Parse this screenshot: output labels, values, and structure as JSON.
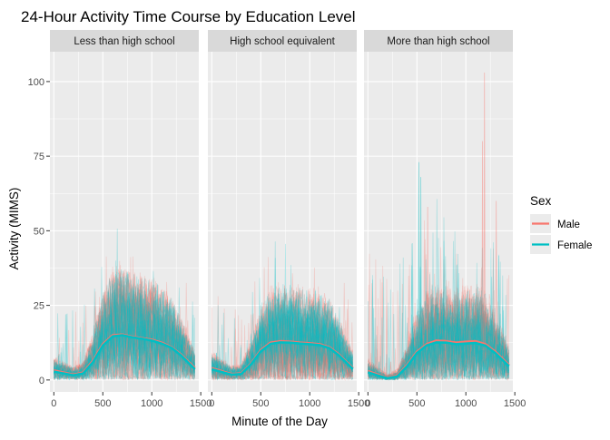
{
  "chart_data": {
    "type": "line",
    "title": "24-Hour Activity Time Course by Education Level",
    "xlabel": "Minute of the Day",
    "ylabel": "Activity (MIMS)",
    "xlim": [
      -40,
      1480
    ],
    "ylim": [
      -4,
      110
    ],
    "xticks": [
      0,
      500,
      1000,
      1500
    ],
    "yticks": [
      0,
      25,
      50,
      75,
      100
    ],
    "grid": true,
    "legend": {
      "title": "Sex",
      "position": "right",
      "entries": [
        {
          "label": "Male",
          "color": "#F8766D"
        },
        {
          "label": "Female",
          "color": "#00BFC4"
        }
      ]
    },
    "colors": {
      "male": "#F8766D",
      "female": "#00BFC4",
      "panel_bg": "#EBEBEB",
      "strip_bg": "#D9D9D9"
    },
    "panels": [
      {
        "label": "Less than high school",
        "smooth": [
          {
            "series": "Male",
            "x": [
              0,
              100,
              200,
              300,
              400,
              500,
              600,
              700,
              800,
              900,
              1000,
              1100,
              1200,
              1300,
              1440
            ],
            "y": [
              3.2,
              2.5,
              1.8,
              2.5,
              6.5,
              12.0,
              15.0,
              15.2,
              14.5,
              14.0,
              13.5,
              12.5,
              11.0,
              8.5,
              4.0
            ]
          },
          {
            "series": "Female",
            "x": [
              0,
              100,
              200,
              300,
              400,
              500,
              600,
              700,
              800,
              900,
              1000,
              1100,
              1200,
              1300,
              1440
            ],
            "y": [
              2.8,
              2.2,
              1.6,
              2.2,
              6.0,
              11.5,
              14.6,
              15.0,
              14.3,
              13.8,
              13.2,
              12.2,
              10.8,
              8.2,
              3.6
            ]
          }
        ]
      },
      {
        "label": "High school equivalent",
        "smooth": [
          {
            "series": "Male",
            "x": [
              0,
              100,
              200,
              300,
              400,
              500,
              600,
              700,
              800,
              900,
              1000,
              1100,
              1200,
              1300,
              1440
            ],
            "y": [
              4.0,
              3.0,
              2.0,
              2.2,
              5.5,
              10.0,
              12.5,
              13.0,
              12.8,
              12.5,
              12.3,
              12.0,
              11.0,
              8.5,
              4.0
            ]
          },
          {
            "series": "Female",
            "x": [
              0,
              100,
              200,
              300,
              400,
              500,
              600,
              700,
              800,
              900,
              1000,
              1100,
              1200,
              1300,
              1440
            ],
            "y": [
              3.6,
              2.7,
              1.8,
              2.0,
              5.2,
              9.6,
              12.1,
              12.6,
              12.5,
              12.2,
              12.0,
              11.7,
              10.7,
              8.2,
              3.7
            ]
          }
        ]
      },
      {
        "label": "More than high school",
        "smooth": [
          {
            "series": "Male",
            "x": [
              0,
              100,
              200,
              300,
              400,
              500,
              600,
              700,
              800,
              900,
              1000,
              1100,
              1200,
              1300,
              1440
            ],
            "y": [
              3.0,
              1.8,
              0.8,
              1.5,
              5.0,
              9.5,
              12.0,
              13.2,
              13.0,
              12.5,
              12.8,
              13.0,
              12.0,
              9.5,
              5.0
            ]
          },
          {
            "series": "Female",
            "x": [
              0,
              100,
              200,
              300,
              400,
              500,
              600,
              700,
              800,
              900,
              1000,
              1100,
              1200,
              1300,
              1440
            ],
            "y": [
              2.6,
              1.5,
              0.6,
              1.2,
              4.6,
              9.0,
              11.6,
              12.6,
              12.5,
              12.0,
              12.2,
              12.4,
              11.5,
              9.0,
              4.6
            ]
          }
        ]
      }
    ]
  }
}
